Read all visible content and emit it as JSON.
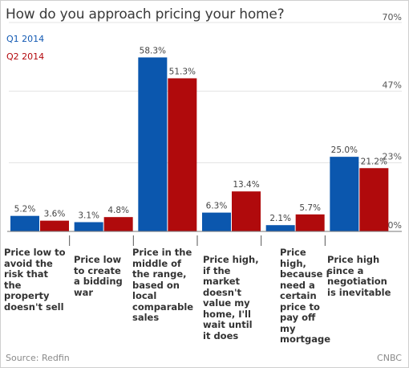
{
  "title": "How do you approach pricing your home?",
  "source": "Source: Redfin",
  "brand": "CNBC",
  "colors": {
    "q1": "#0b57ae",
    "q2": "#b00a0c",
    "grid": "#e3e3e3",
    "axis": "#777777"
  },
  "chart_data": {
    "type": "bar",
    "title": "How do you approach pricing your home?",
    "categories": [
      "Price low to avoid the risk that the property doesn't sell",
      "Price low to create a bidding war",
      "Price in the middle of the range, based on local comparable sales",
      "Price high, if the market doesn't value my home, I'll wait until it does",
      "Price high, because I need a certain price to pay off my mortgage",
      "Price high since a negotiation is inevitable"
    ],
    "series": [
      {
        "name": "Q1 2014",
        "values": [
          5.2,
          3.1,
          58.3,
          6.3,
          2.1,
          25.0
        ],
        "labels": [
          "5.2%",
          "3.1%",
          "58.3%",
          "6.3%",
          "2.1%",
          "25.0%"
        ]
      },
      {
        "name": "Q2 2014",
        "values": [
          3.6,
          4.8,
          51.3,
          13.4,
          5.7,
          21.2
        ],
        "labels": [
          "3.6%",
          "4.8%",
          "51.3%",
          "13.4%",
          "5.7%",
          "21.2%"
        ]
      }
    ],
    "ylim": [
      0,
      70
    ],
    "yticks": [
      0,
      23,
      47,
      70
    ],
    "ytick_labels": [
      "0%",
      "23%",
      "47%",
      "70%"
    ],
    "legend": "top-left",
    "grid": true
  }
}
